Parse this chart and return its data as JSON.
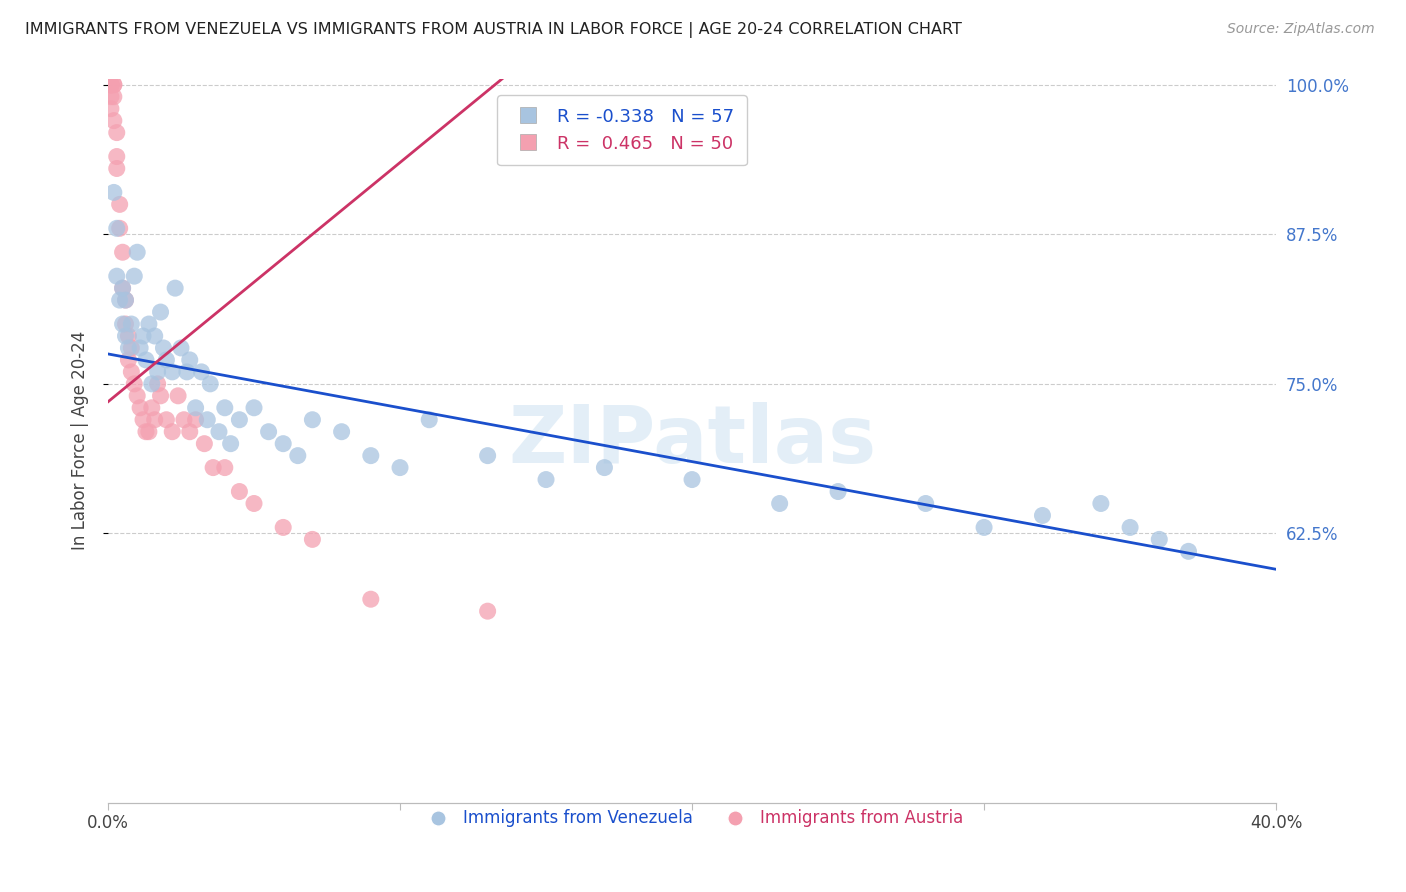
{
  "title": "IMMIGRANTS FROM VENEZUELA VS IMMIGRANTS FROM AUSTRIA IN LABOR FORCE | AGE 20-24 CORRELATION CHART",
  "source": "Source: ZipAtlas.com",
  "ylabel": "In Labor Force | Age 20-24",
  "xlim": [
    0.0,
    0.4
  ],
  "ylim": [
    0.4,
    1.005
  ],
  "right_yticks": [
    1.0,
    0.875,
    0.75,
    0.625
  ],
  "right_ytick_labels": [
    "100.0%",
    "87.5%",
    "75.0%",
    "62.5%"
  ],
  "gridline_color": "#cccccc",
  "watermark": "ZIPatlas",
  "venezuela_color": "#a8c4e0",
  "austria_color": "#f4a0b0",
  "venezuela_line_color": "#1a4fcc",
  "austria_line_color": "#cc3366",
  "venezuela_R": -0.338,
  "venezuela_N": 57,
  "austria_R": 0.465,
  "austria_N": 50,
  "venezuela_x": [
    0.002,
    0.003,
    0.003,
    0.004,
    0.005,
    0.005,
    0.006,
    0.006,
    0.007,
    0.008,
    0.009,
    0.01,
    0.011,
    0.012,
    0.013,
    0.014,
    0.015,
    0.016,
    0.017,
    0.018,
    0.019,
    0.02,
    0.022,
    0.023,
    0.025,
    0.027,
    0.028,
    0.03,
    0.032,
    0.034,
    0.035,
    0.038,
    0.04,
    0.042,
    0.045,
    0.05,
    0.055,
    0.06,
    0.065,
    0.07,
    0.08,
    0.09,
    0.1,
    0.11,
    0.13,
    0.15,
    0.17,
    0.2,
    0.23,
    0.25,
    0.28,
    0.3,
    0.32,
    0.34,
    0.35,
    0.36,
    0.37
  ],
  "venezuela_y": [
    0.91,
    0.84,
    0.88,
    0.82,
    0.83,
    0.8,
    0.79,
    0.82,
    0.78,
    0.8,
    0.84,
    0.86,
    0.78,
    0.79,
    0.77,
    0.8,
    0.75,
    0.79,
    0.76,
    0.81,
    0.78,
    0.77,
    0.76,
    0.83,
    0.78,
    0.76,
    0.77,
    0.73,
    0.76,
    0.72,
    0.75,
    0.71,
    0.73,
    0.7,
    0.72,
    0.73,
    0.71,
    0.7,
    0.69,
    0.72,
    0.71,
    0.69,
    0.68,
    0.72,
    0.69,
    0.67,
    0.68,
    0.67,
    0.65,
    0.66,
    0.65,
    0.63,
    0.64,
    0.65,
    0.63,
    0.62,
    0.61
  ],
  "austria_x": [
    0.001,
    0.001,
    0.001,
    0.001,
    0.001,
    0.001,
    0.001,
    0.001,
    0.002,
    0.002,
    0.002,
    0.002,
    0.003,
    0.003,
    0.003,
    0.004,
    0.004,
    0.005,
    0.005,
    0.006,
    0.006,
    0.007,
    0.007,
    0.008,
    0.008,
    0.009,
    0.01,
    0.011,
    0.012,
    0.013,
    0.014,
    0.015,
    0.016,
    0.017,
    0.018,
    0.02,
    0.022,
    0.024,
    0.026,
    0.028,
    0.03,
    0.033,
    0.036,
    0.04,
    0.045,
    0.05,
    0.06,
    0.07,
    0.09,
    0.13
  ],
  "austria_y": [
    1.0,
    1.0,
    1.0,
    1.0,
    1.0,
    1.0,
    0.99,
    0.98,
    1.0,
    1.0,
    0.99,
    0.97,
    0.96,
    0.94,
    0.93,
    0.9,
    0.88,
    0.86,
    0.83,
    0.82,
    0.8,
    0.79,
    0.77,
    0.78,
    0.76,
    0.75,
    0.74,
    0.73,
    0.72,
    0.71,
    0.71,
    0.73,
    0.72,
    0.75,
    0.74,
    0.72,
    0.71,
    0.74,
    0.72,
    0.71,
    0.72,
    0.7,
    0.68,
    0.68,
    0.66,
    0.65,
    0.63,
    0.62,
    0.57,
    0.56
  ],
  "venezuela_trend_x": [
    0.0,
    0.4
  ],
  "venezuela_trend_y": [
    0.775,
    0.595
  ],
  "austria_trend_x": [
    0.0,
    0.135
  ],
  "austria_trend_y": [
    0.735,
    1.005
  ]
}
